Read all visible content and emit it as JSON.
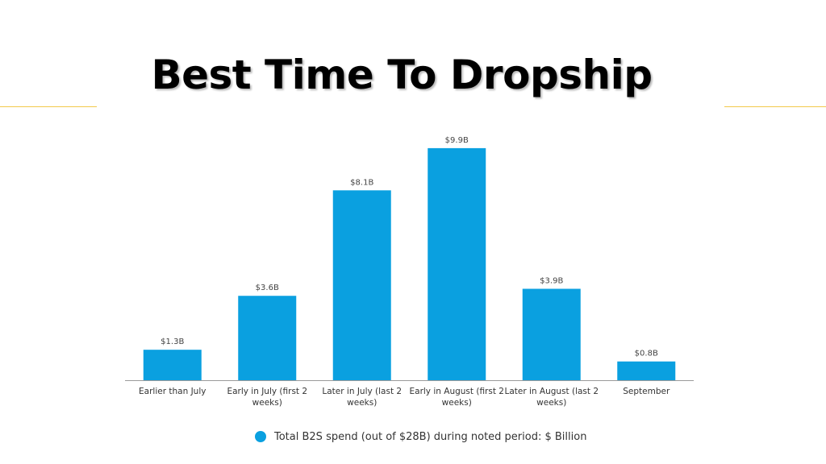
{
  "slide": {
    "title": "Best Time To Dropship",
    "accent_color": "#f2c94c"
  },
  "chart_data": {
    "type": "bar",
    "categories": [
      "Earlier than July",
      "Early in July (first 2 weeks)",
      "Later in July (last 2 weeks)",
      "Early in August (first 2 weeks)",
      "Later in August (last 2 weeks)",
      "September"
    ],
    "category_lines": [
      [
        "Earlier than July"
      ],
      [
        "Early in July (first 2",
        "weeks)"
      ],
      [
        "Later in July (last 2",
        "weeks)"
      ],
      [
        "Early in August (first 2",
        "weeks)"
      ],
      [
        "Later in August (last 2",
        "weeks)"
      ],
      [
        "September"
      ]
    ],
    "values": [
      1.3,
      3.6,
      8.1,
      9.9,
      3.9,
      0.8
    ],
    "value_labels": [
      "$1.3B",
      "$3.6B",
      "$8.1B",
      "$9.9B",
      "$3.9B",
      "$0.8B"
    ],
    "ylim": [
      0,
      10
    ],
    "grid": false,
    "bar_color": "#0aa0e0",
    "legend": {
      "position": "bottom",
      "label": "Total B2S spend (out of $28B) during noted period: $ Billion"
    }
  }
}
